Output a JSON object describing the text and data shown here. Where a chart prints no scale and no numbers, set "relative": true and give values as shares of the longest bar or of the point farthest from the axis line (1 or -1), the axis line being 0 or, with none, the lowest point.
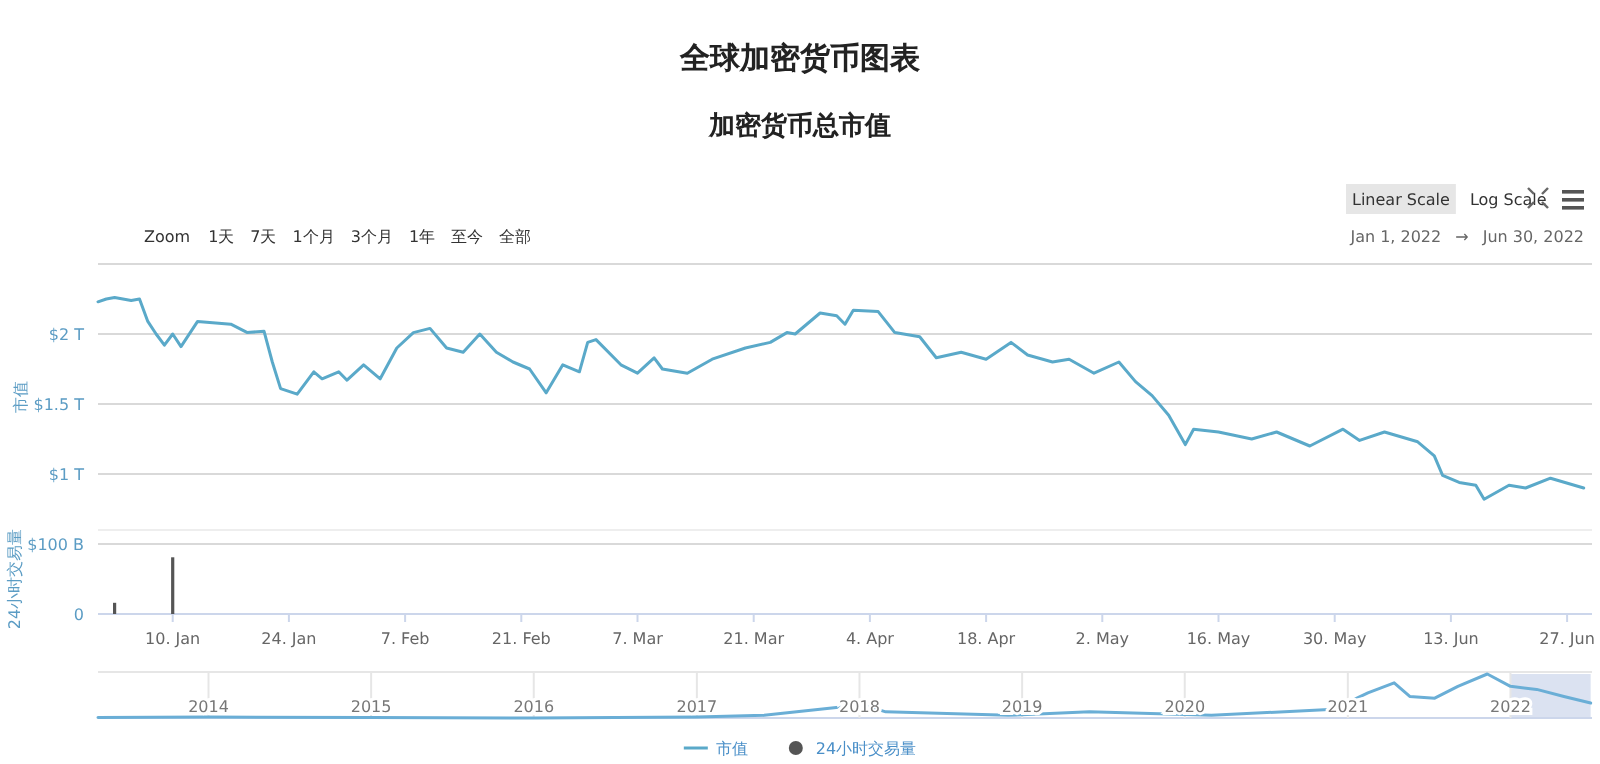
{
  "chart_data": [
    {
      "type": "line",
      "title": "全球加密货币图表",
      "subtitle": "加密货币总市值",
      "ylabel": "市值",
      "annotations": [
        "Zoom",
        "1天",
        "7天",
        "1个月",
        "3个月",
        "1年",
        "至今",
        "全部",
        "Linear Scale",
        "Log Scale",
        "Jan 1, 2022",
        "→",
        "Jun 30, 2022"
      ],
      "x": [
        "2022-01-01",
        "2022-01-02",
        "2022-01-03",
        "2022-01-05",
        "2022-01-06",
        "2022-01-07",
        "2022-01-08",
        "2022-01-09",
        "2022-01-10",
        "2022-01-11",
        "2022-01-13",
        "2022-01-17",
        "2022-01-19",
        "2022-01-21",
        "2022-01-22",
        "2022-01-23",
        "2022-01-25",
        "2022-01-27",
        "2022-01-28",
        "2022-01-30",
        "2022-01-31",
        "2022-02-02",
        "2022-02-04",
        "2022-02-06",
        "2022-02-08",
        "2022-02-10",
        "2022-02-12",
        "2022-02-14",
        "2022-02-16",
        "2022-02-18",
        "2022-02-20",
        "2022-02-22",
        "2022-02-24",
        "2022-02-26",
        "2022-02-28",
        "2022-03-01",
        "2022-03-02",
        "2022-03-05",
        "2022-03-07",
        "2022-03-09",
        "2022-03-10",
        "2022-03-13",
        "2022-03-16",
        "2022-03-20",
        "2022-03-23",
        "2022-03-25",
        "2022-03-26",
        "2022-03-29",
        "2022-03-31",
        "2022-04-01",
        "2022-04-02",
        "2022-04-05",
        "2022-04-07",
        "2022-04-10",
        "2022-04-12",
        "2022-04-15",
        "2022-04-18",
        "2022-04-21",
        "2022-04-23",
        "2022-04-26",
        "2022-04-28",
        "2022-05-01",
        "2022-05-04",
        "2022-05-06",
        "2022-05-08",
        "2022-05-10",
        "2022-05-12",
        "2022-05-13",
        "2022-05-16",
        "2022-05-20",
        "2022-05-23",
        "2022-05-27",
        "2022-05-31",
        "2022-06-02",
        "2022-06-05",
        "2022-06-09",
        "2022-06-11",
        "2022-06-12",
        "2022-06-14",
        "2022-06-16",
        "2022-06-17",
        "2022-06-20",
        "2022-06-22",
        "2022-06-25",
        "2022-06-29"
      ],
      "series": [
        {
          "name": "市值",
          "color": "#5aa9c9",
          "values": [
            2.23,
            2.25,
            2.26,
            2.24,
            2.25,
            2.09,
            2.0,
            1.92,
            2.0,
            1.91,
            2.09,
            2.07,
            2.01,
            2.02,
            1.8,
            1.61,
            1.57,
            1.73,
            1.68,
            1.73,
            1.67,
            1.78,
            1.68,
            1.9,
            2.01,
            2.04,
            1.9,
            1.87,
            2.0,
            1.87,
            1.8,
            1.75,
            1.58,
            1.78,
            1.73,
            1.94,
            1.96,
            1.78,
            1.72,
            1.83,
            1.75,
            1.72,
            1.82,
            1.9,
            1.94,
            2.01,
            2.0,
            2.15,
            2.13,
            2.07,
            2.17,
            2.16,
            2.01,
            1.98,
            1.83,
            1.87,
            1.82,
            1.94,
            1.85,
            1.8,
            1.82,
            1.72,
            1.8,
            1.66,
            1.56,
            1.42,
            1.21,
            1.32,
            1.3,
            1.25,
            1.3,
            1.2,
            1.32,
            1.24,
            1.3,
            1.23,
            1.13,
            0.99,
            0.94,
            0.92,
            0.82,
            0.92,
            0.9,
            0.97,
            0.9
          ]
        }
      ],
      "xlim": [
        "2022-01-01",
        "2022-06-30"
      ],
      "ylim": [
        0.6,
        2.5
      ],
      "yticks": [
        {
          "value": 1,
          "label": "$1 T"
        },
        {
          "value": 1.5,
          "label": "$1.5 T"
        },
        {
          "value": 2,
          "label": "$2 T"
        },
        {
          "value": 2.5,
          "label": null
        }
      ],
      "tick_labels": "y",
      "grid": "y",
      "legend": "bottom"
    },
    {
      "type": "bar",
      "ylabel": "24小时交易量",
      "x": [
        "2022-01-03",
        "2022-01-10"
      ],
      "series": [
        {
          "name": "24小时交易量",
          "color": "#555555",
          "values": [
            16,
            81
          ]
        }
      ],
      "xlim": [
        "2022-01-01",
        "2022-06-30"
      ],
      "ylim": [
        0,
        100
      ],
      "yticks": [
        0,
        {
          "value": 100,
          "label": "$100 B"
        }
      ],
      "xticks": [
        {
          "value": "2022-01-10",
          "label": "10. Jan"
        },
        {
          "value": "2022-01-24",
          "label": "24. Jan"
        },
        {
          "value": "2022-02-07",
          "label": "7. Feb"
        },
        {
          "value": "2022-02-21",
          "label": "21. Feb"
        },
        {
          "value": "2022-03-07",
          "label": "7. Mar"
        },
        {
          "value": "2022-03-21",
          "label": "21. Mar"
        },
        {
          "value": "2022-04-04",
          "label": "4. Apr"
        },
        {
          "value": "2022-04-18",
          "label": "18. Apr"
        },
        {
          "value": "2022-05-02",
          "label": "2. May"
        },
        {
          "value": "2022-05-16",
          "label": "16. May"
        },
        {
          "value": "2022-05-30",
          "label": "30. May"
        },
        {
          "value": "2022-06-13",
          "label": "13. Jun"
        },
        {
          "value": "2022-06-27",
          "label": "27. Jun"
        }
      ],
      "legend": "bottom"
    },
    {
      "type": "line",
      "relative": true,
      "color": "#6aaed6",
      "x": [
        "2013-04-28",
        "2014-01-01",
        "2015-01-01",
        "2016-01-01",
        "2017-01-01",
        "2017-06-01",
        "2017-12-01",
        "2018-01-07",
        "2018-03-01",
        "2018-12-01",
        "2019-06-01",
        "2020-03-01",
        "2020-12-01",
        "2021-02-15",
        "2021-04-15",
        "2021-05-20",
        "2021-07-15",
        "2021-09-05",
        "2021-11-10",
        "2022-01-01",
        "2022-03-01",
        "2022-05-01",
        "2022-06-30"
      ],
      "values": [
        0.01,
        0.02,
        0.01,
        0.0,
        0.02,
        0.06,
        0.26,
        0.3,
        0.14,
        0.06,
        0.14,
        0.06,
        0.2,
        0.57,
        0.8,
        0.49,
        0.45,
        0.72,
        1,
        0.72,
        0.65,
        0.49,
        0.34
      ],
      "xlim": [
        "2013-04-28",
        "2022-07-03"
      ],
      "xticks": [
        {
          "value": "2014",
          "label": "2014"
        },
        {
          "value": "2015",
          "label": "2015"
        },
        {
          "value": "2016",
          "label": "2016"
        },
        {
          "value": "2017",
          "label": "2017"
        },
        {
          "value": "2018",
          "label": "2018"
        },
        {
          "value": "2019",
          "label": "2019"
        },
        {
          "value": "2020",
          "label": "2020"
        },
        {
          "value": "2021",
          "label": "2021"
        },
        {
          "value": "2022",
          "label": "2022"
        }
      ],
      "grid": "x",
      "bands": [
        {
          "axis": "x",
          "from": "2022-01-01",
          "to": "2022-06-30",
          "color": "#ccd6eb"
        }
      ]
    }
  ]
}
